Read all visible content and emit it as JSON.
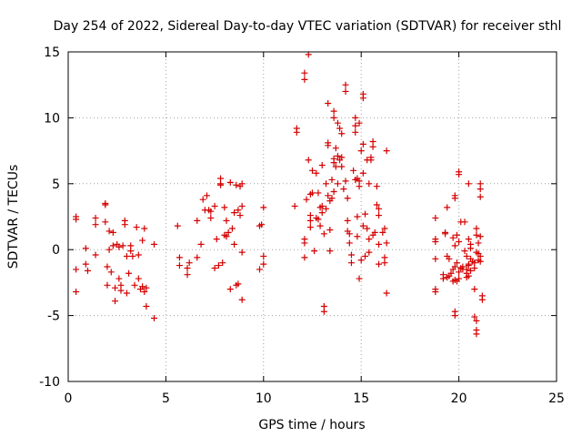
{
  "chart_data": {
    "type": "scatter",
    "title": "Day 254 of 2022, Sidereal Day-to-day VTEC variation (SDTVAR) for receiver sthl",
    "xlabel": "GPS time / hours",
    "ylabel": "SDTVAR / TECUs",
    "xlim": [
      0,
      25
    ],
    "ylim": [
      -10,
      15
    ],
    "xticks": [
      0,
      5,
      10,
      15,
      20,
      25
    ],
    "yticks": [
      -10,
      -5,
      0,
      5,
      10,
      15
    ],
    "xtick_labels": [
      "0",
      "5",
      "10",
      "15",
      "20",
      "25"
    ],
    "ytick_labels": [
      "-10",
      "-5",
      "0",
      "5",
      "10",
      "15"
    ],
    "grid": true,
    "marker": "+",
    "color": "#d40000",
    "series": [
      {
        "name": "SDTVAR",
        "points": [
          [
            0.4,
            2.5
          ],
          [
            0.4,
            2.3
          ],
          [
            0.4,
            -1.5
          ],
          [
            0.4,
            -3.2
          ],
          [
            0.9,
            0.1
          ],
          [
            0.9,
            -1.1
          ],
          [
            1.0,
            -1.6
          ],
          [
            1.4,
            -0.4
          ],
          [
            1.4,
            2.4
          ],
          [
            1.4,
            1.9
          ],
          [
            1.9,
            3.5
          ],
          [
            1.9,
            3.4
          ],
          [
            1.9,
            2.1
          ],
          [
            2.0,
            -1.3
          ],
          [
            2.0,
            -2.7
          ],
          [
            2.1,
            1.4
          ],
          [
            2.1,
            0.0
          ],
          [
            2.2,
            -1.7
          ],
          [
            2.3,
            0.3
          ],
          [
            2.3,
            1.3
          ],
          [
            2.4,
            -2.9
          ],
          [
            2.4,
            -3.9
          ],
          [
            2.5,
            0.4
          ],
          [
            2.6,
            -2.2
          ],
          [
            2.6,
            0.2
          ],
          [
            2.7,
            -2.7
          ],
          [
            2.7,
            -3.1
          ],
          [
            2.8,
            0.3
          ],
          [
            2.9,
            2.2
          ],
          [
            2.9,
            1.9
          ],
          [
            3.0,
            -0.5
          ],
          [
            3.0,
            -3.3
          ],
          [
            3.1,
            -1.8
          ],
          [
            3.2,
            0.3
          ],
          [
            3.2,
            -0.1
          ],
          [
            3.3,
            -0.5
          ],
          [
            3.4,
            -2.7
          ],
          [
            3.5,
            1.7
          ],
          [
            3.6,
            -0.4
          ],
          [
            3.6,
            -2.2
          ],
          [
            3.7,
            -3.0
          ],
          [
            3.8,
            0.7
          ],
          [
            3.8,
            -2.8
          ],
          [
            3.9,
            -3.2
          ],
          [
            3.9,
            1.6
          ],
          [
            4.0,
            -4.3
          ],
          [
            4.0,
            -2.9
          ],
          [
            4.4,
            -5.2
          ],
          [
            4.4,
            0.4
          ],
          [
            5.6,
            1.8
          ],
          [
            5.7,
            -0.6
          ],
          [
            5.7,
            -1.2
          ],
          [
            6.1,
            -1.4
          ],
          [
            6.1,
            -1.9
          ],
          [
            6.2,
            -1.0
          ],
          [
            6.6,
            2.2
          ],
          [
            6.6,
            -0.6
          ],
          [
            6.8,
            0.4
          ],
          [
            6.9,
            3.8
          ],
          [
            7.0,
            3.0
          ],
          [
            7.1,
            4.1
          ],
          [
            7.2,
            3.0
          ],
          [
            7.3,
            2.4
          ],
          [
            7.3,
            2.9
          ],
          [
            7.5,
            3.3
          ],
          [
            7.5,
            -1.4
          ],
          [
            7.6,
            0.8
          ],
          [
            7.7,
            -1.2
          ],
          [
            7.8,
            5.4
          ],
          [
            7.8,
            5.0
          ],
          [
            7.8,
            4.9
          ],
          [
            7.9,
            -1.0
          ],
          [
            8.0,
            1.1
          ],
          [
            8.0,
            3.2
          ],
          [
            8.1,
            1.0
          ],
          [
            8.1,
            2.2
          ],
          [
            8.2,
            1.3
          ],
          [
            8.3,
            5.1
          ],
          [
            8.3,
            -3.0
          ],
          [
            8.4,
            1.6
          ],
          [
            8.5,
            2.8
          ],
          [
            8.5,
            0.4
          ],
          [
            8.6,
            4.9
          ],
          [
            8.6,
            -2.7
          ],
          [
            8.7,
            3.0
          ],
          [
            8.7,
            -2.6
          ],
          [
            8.8,
            2.6
          ],
          [
            8.8,
            4.8
          ],
          [
            8.9,
            5.0
          ],
          [
            8.9,
            3.3
          ],
          [
            8.9,
            -0.2
          ],
          [
            8.9,
            -3.8
          ],
          [
            9.8,
            1.8
          ],
          [
            9.8,
            -1.5
          ],
          [
            9.9,
            1.9
          ],
          [
            10.0,
            -0.5
          ],
          [
            10.0,
            -1.1
          ],
          [
            10.0,
            3.2
          ],
          [
            11.6,
            3.3
          ],
          [
            11.7,
            9.2
          ],
          [
            11.7,
            8.9
          ],
          [
            12.1,
            13.4
          ],
          [
            12.1,
            12.9
          ],
          [
            12.1,
            0.8
          ],
          [
            12.1,
            0.5
          ],
          [
            12.1,
            -0.6
          ],
          [
            12.2,
            3.8
          ],
          [
            12.3,
            14.8
          ],
          [
            12.3,
            6.8
          ],
          [
            12.4,
            4.2
          ],
          [
            12.4,
            2.6
          ],
          [
            12.4,
            2.2
          ],
          [
            12.4,
            1.7
          ],
          [
            12.5,
            6.0
          ],
          [
            12.5,
            4.3
          ],
          [
            12.6,
            -0.1
          ],
          [
            12.7,
            2.4
          ],
          [
            12.7,
            5.8
          ],
          [
            12.8,
            4.3
          ],
          [
            12.8,
            2.3
          ],
          [
            12.9,
            3.2
          ],
          [
            12.9,
            1.8
          ],
          [
            13.0,
            2.8
          ],
          [
            13.0,
            6.4
          ],
          [
            13.0,
            3.3
          ],
          [
            13.1,
            1.2
          ],
          [
            13.1,
            -4.3
          ],
          [
            13.1,
            -4.7
          ],
          [
            13.2,
            5.0
          ],
          [
            13.2,
            3.1
          ],
          [
            13.3,
            11.1
          ],
          [
            13.3,
            8.1
          ],
          [
            13.3,
            7.9
          ],
          [
            13.3,
            4.1
          ],
          [
            13.4,
            3.7
          ],
          [
            13.4,
            1.5
          ],
          [
            13.4,
            -0.1
          ],
          [
            13.5,
            5.3
          ],
          [
            13.5,
            3.9
          ],
          [
            13.6,
            10.5
          ],
          [
            13.6,
            10.0
          ],
          [
            13.6,
            6.6
          ],
          [
            13.6,
            6.9
          ],
          [
            13.6,
            4.4
          ],
          [
            13.7,
            6.3
          ],
          [
            13.7,
            7.7
          ],
          [
            13.8,
            9.6
          ],
          [
            13.8,
            7.1
          ],
          [
            13.8,
            5.0
          ],
          [
            13.9,
            9.2
          ],
          [
            13.9,
            6.8
          ],
          [
            14.0,
            7.0
          ],
          [
            14.0,
            8.8
          ],
          [
            14.0,
            6.3
          ],
          [
            14.1,
            4.6
          ],
          [
            14.2,
            12.5
          ],
          [
            14.2,
            12.0
          ],
          [
            14.2,
            5.2
          ],
          [
            14.3,
            3.9
          ],
          [
            14.3,
            2.2
          ],
          [
            14.3,
            1.4
          ],
          [
            14.4,
            0.5
          ],
          [
            14.4,
            1.2
          ],
          [
            14.5,
            -0.4
          ],
          [
            14.5,
            -1.0
          ],
          [
            14.6,
            6.0
          ],
          [
            14.7,
            10.0
          ],
          [
            14.7,
            9.4
          ],
          [
            14.7,
            5.3
          ],
          [
            14.7,
            8.9
          ],
          [
            14.8,
            5.4
          ],
          [
            14.8,
            2.5
          ],
          [
            14.8,
            1.0
          ],
          [
            14.9,
            9.6
          ],
          [
            14.9,
            5.2
          ],
          [
            14.9,
            4.8
          ],
          [
            14.9,
            -2.2
          ],
          [
            15.0,
            7.5
          ],
          [
            15.0,
            -0.8
          ],
          [
            15.1,
            11.8
          ],
          [
            15.1,
            11.5
          ],
          [
            15.1,
            8.0
          ],
          [
            15.1,
            5.8
          ],
          [
            15.1,
            1.8
          ],
          [
            15.2,
            2.7
          ],
          [
            15.2,
            -0.5
          ],
          [
            15.3,
            1.6
          ],
          [
            15.3,
            6.8
          ],
          [
            15.4,
            5.0
          ],
          [
            15.4,
            0.8
          ],
          [
            15.4,
            -0.2
          ],
          [
            15.5,
            6.8
          ],
          [
            15.5,
            7.0
          ],
          [
            15.6,
            8.2
          ],
          [
            15.6,
            7.8
          ],
          [
            15.6,
            1.1
          ],
          [
            15.7,
            1.3
          ],
          [
            15.8,
            4.8
          ],
          [
            15.8,
            3.4
          ],
          [
            15.9,
            3.1
          ],
          [
            15.9,
            2.6
          ],
          [
            15.9,
            0.4
          ],
          [
            15.9,
            -1.1
          ],
          [
            16.1,
            1.3
          ],
          [
            16.2,
            -1.0
          ],
          [
            16.2,
            -0.6
          ],
          [
            16.2,
            1.6
          ],
          [
            16.3,
            7.5
          ],
          [
            16.3,
            -3.3
          ],
          [
            16.3,
            0.5
          ],
          [
            18.8,
            2.4
          ],
          [
            18.8,
            0.8
          ],
          [
            18.8,
            0.6
          ],
          [
            18.8,
            -0.7
          ],
          [
            18.8,
            -3.0
          ],
          [
            18.8,
            -3.2
          ],
          [
            19.2,
            -1.9
          ],
          [
            19.2,
            -2.2
          ],
          [
            19.3,
            1.2
          ],
          [
            19.3,
            1.3
          ],
          [
            19.4,
            3.2
          ],
          [
            19.4,
            -2.1
          ],
          [
            19.4,
            -0.5
          ],
          [
            19.5,
            -2.0
          ],
          [
            19.5,
            -0.7
          ],
          [
            19.6,
            -1.8
          ],
          [
            19.7,
            0.9
          ],
          [
            19.7,
            -2.4
          ],
          [
            19.7,
            -1.5
          ],
          [
            19.8,
            4.1
          ],
          [
            19.8,
            3.9
          ],
          [
            19.8,
            0.3
          ],
          [
            19.8,
            -1.3
          ],
          [
            19.8,
            -2.3
          ],
          [
            19.8,
            -4.7
          ],
          [
            19.8,
            -5.0
          ],
          [
            19.9,
            -1.0
          ],
          [
            19.9,
            1.1
          ],
          [
            19.9,
            -2.4
          ],
          [
            20.0,
            5.9
          ],
          [
            20.0,
            5.7
          ],
          [
            20.0,
            0.6
          ],
          [
            20.0,
            -1.7
          ],
          [
            20.0,
            -2.2
          ],
          [
            20.1,
            -1.4
          ],
          [
            20.1,
            2.1
          ],
          [
            20.2,
            -1.3
          ],
          [
            20.2,
            -1.5
          ],
          [
            20.3,
            -0.1
          ],
          [
            20.3,
            2.1
          ],
          [
            20.4,
            -1.5
          ],
          [
            20.4,
            -0.5
          ],
          [
            20.4,
            -1.8
          ],
          [
            20.4,
            -2.1
          ],
          [
            20.5,
            5.0
          ],
          [
            20.5,
            0.8
          ],
          [
            20.5,
            -2.0
          ],
          [
            20.5,
            -1.2
          ],
          [
            20.5,
            -1.1
          ],
          [
            20.6,
            0.4
          ],
          [
            20.6,
            -1.6
          ],
          [
            20.6,
            0.1
          ],
          [
            20.6,
            -0.7
          ],
          [
            20.7,
            -0.9
          ],
          [
            20.8,
            -1.4
          ],
          [
            20.8,
            -3.0
          ],
          [
            20.8,
            -1.0
          ],
          [
            20.8,
            -5.1
          ],
          [
            20.9,
            -5.4
          ],
          [
            20.9,
            -6.1
          ],
          [
            20.9,
            -6.4
          ],
          [
            20.9,
            1.6
          ],
          [
            20.9,
            1.1
          ],
          [
            20.9,
            -0.2
          ],
          [
            21.0,
            -0.8
          ],
          [
            21.0,
            -0.3
          ],
          [
            21.0,
            0.5
          ],
          [
            21.1,
            -0.5
          ],
          [
            21.1,
            1.0
          ],
          [
            21.1,
            -0.9
          ],
          [
            21.1,
            5.0
          ],
          [
            21.1,
            4.6
          ],
          [
            21.1,
            4.0
          ],
          [
            21.2,
            -3.5
          ],
          [
            21.2,
            -3.8
          ]
        ]
      }
    ]
  }
}
